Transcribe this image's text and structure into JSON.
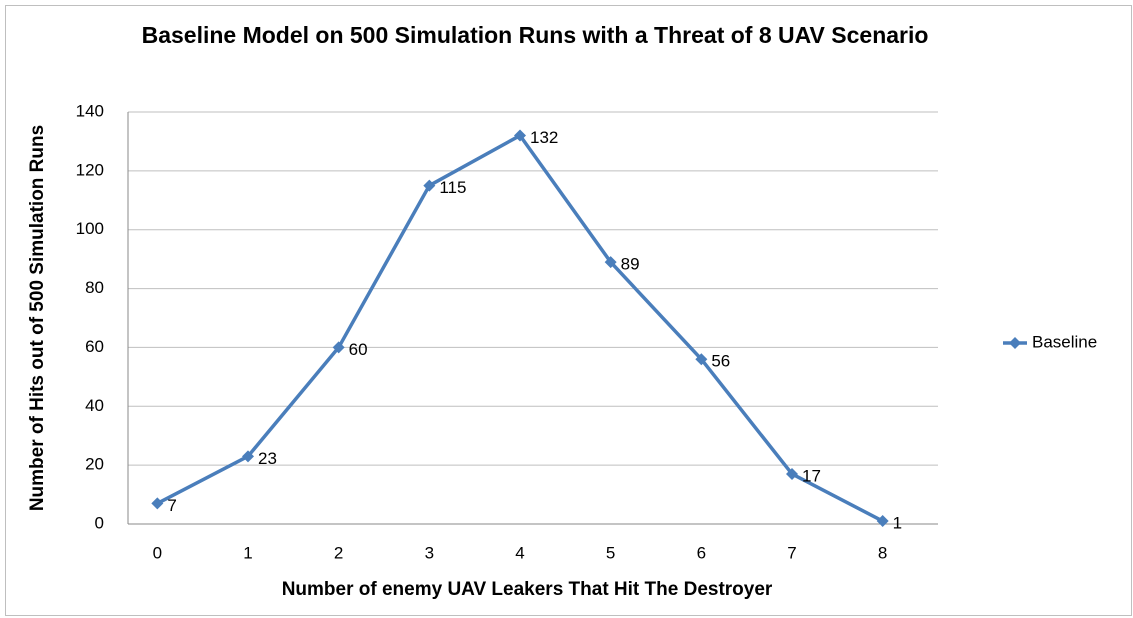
{
  "chart_data": {
    "type": "line",
    "title": "Baseline Model on 500 Simulation Runs with a Threat of 8 UAV Scenario",
    "x_label": "Number of enemy UAV Leakers That Hit The Destroyer",
    "y_label": "Number of Hits out of 500 Simulation Runs",
    "categories": [
      "0",
      "1",
      "2",
      "3",
      "4",
      "5",
      "6",
      "7",
      "8"
    ],
    "series": [
      {
        "name": "Baseline",
        "color": "#4a7ebb",
        "values": [
          7,
          23,
          60,
          115,
          132,
          89,
          56,
          17,
          1
        ]
      }
    ],
    "ylim": [
      0,
      140
    ],
    "yticks": [
      0,
      20,
      40,
      60,
      80,
      100,
      120,
      140
    ],
    "grid": true,
    "legend": "right"
  }
}
